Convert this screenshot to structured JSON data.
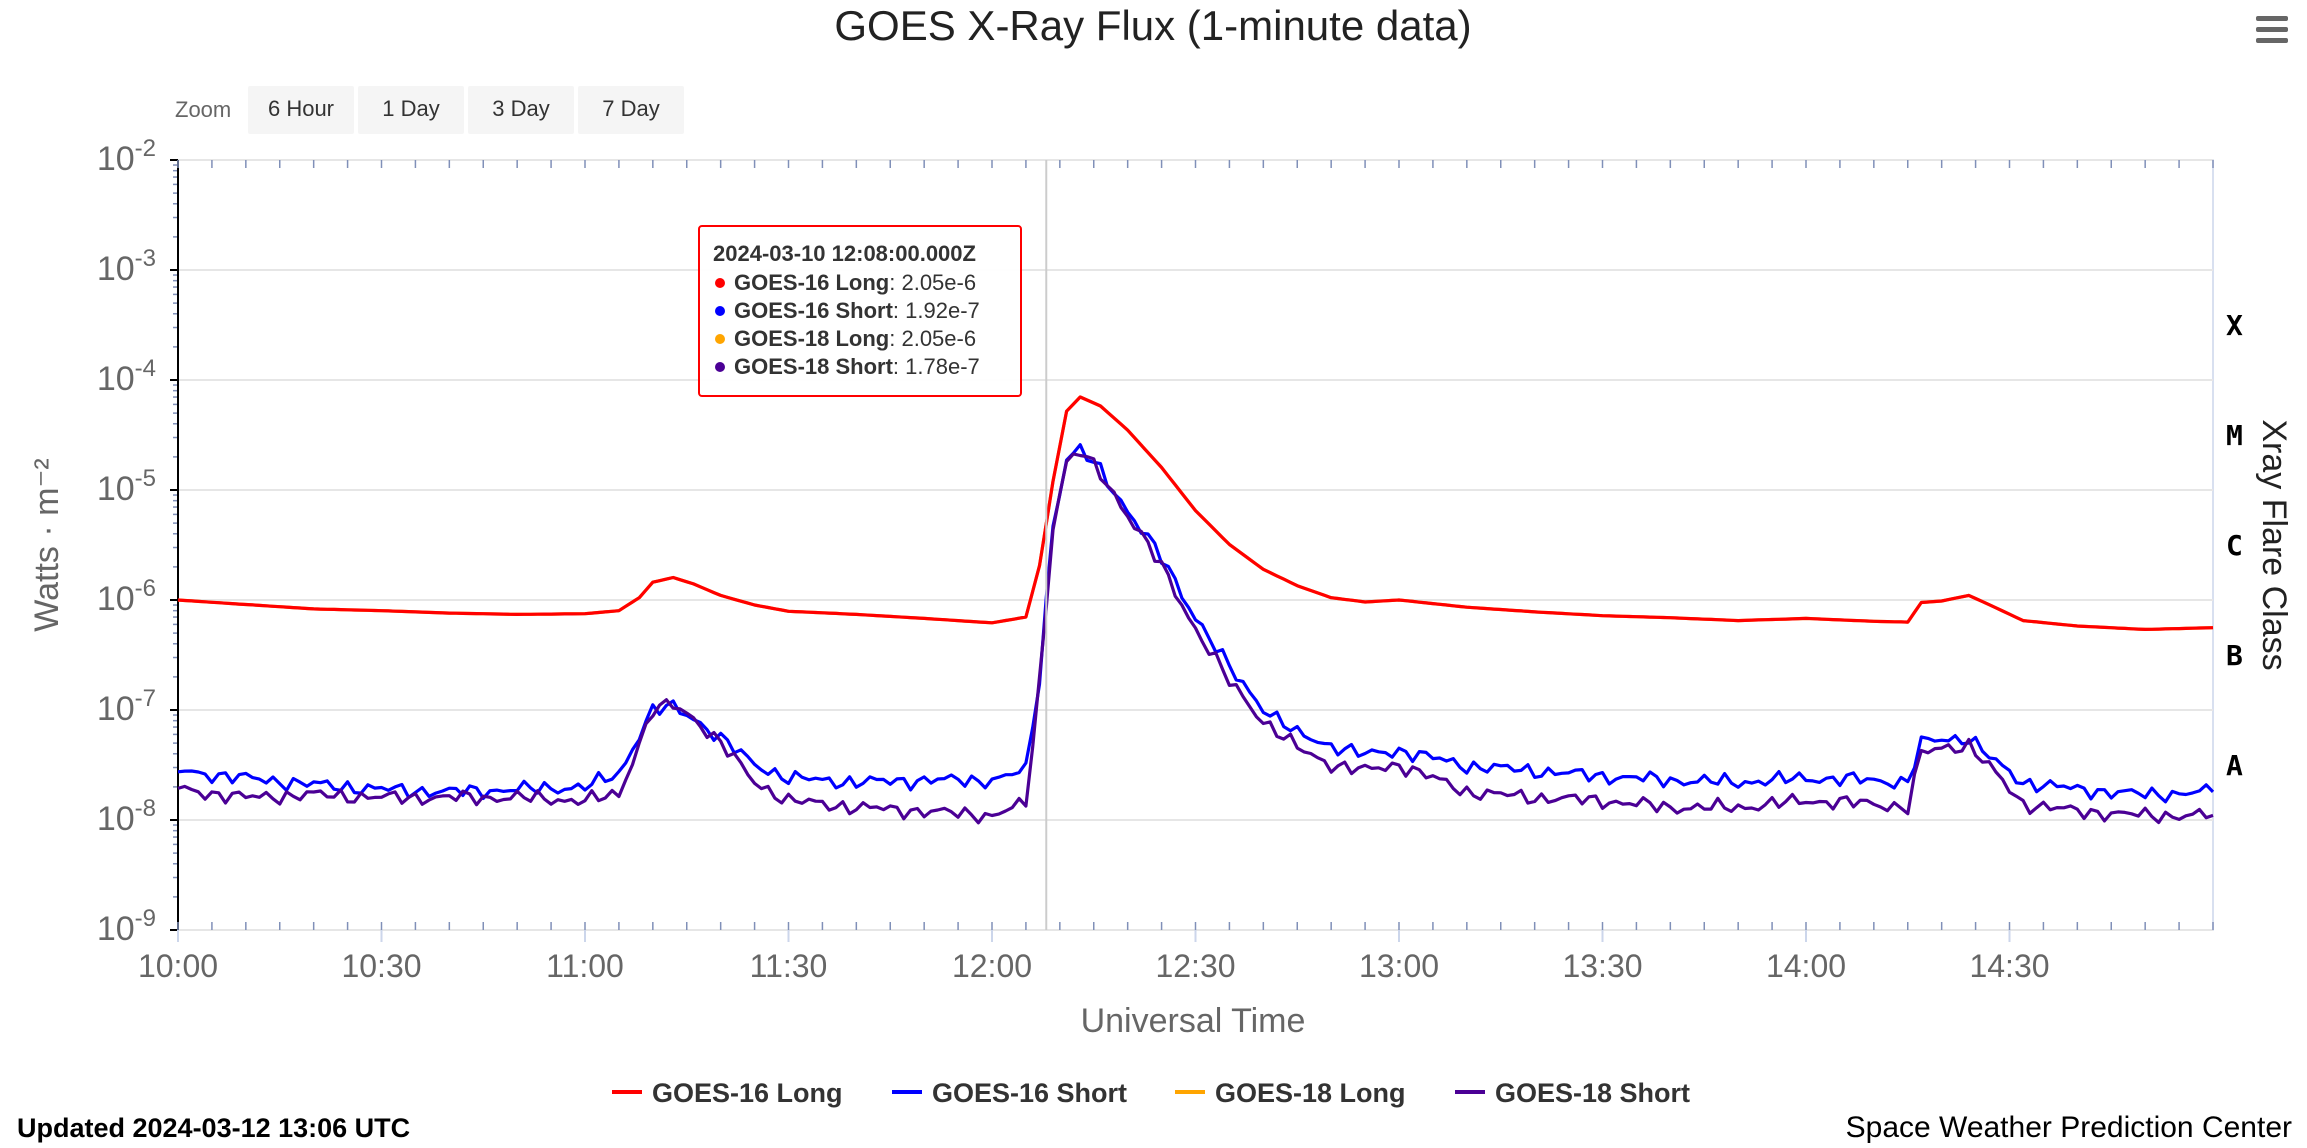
{
  "chart_data": {
    "type": "line",
    "title": "GOES X-Ray Flux (1-minute data)",
    "xlabel": "Universal Time",
    "ylabel": "Watts · m⁻²",
    "y_scale": "log",
    "ylim": [
      1e-09,
      0.01
    ],
    "xlim": [
      "10:00",
      "15:00"
    ],
    "y_ticks": [
      {
        "base": "10",
        "exp": "-9"
      },
      {
        "base": "10",
        "exp": "-8"
      },
      {
        "base": "10",
        "exp": "-7"
      },
      {
        "base": "10",
        "exp": "-6"
      },
      {
        "base": "10",
        "exp": "-5"
      },
      {
        "base": "10",
        "exp": "-4"
      },
      {
        "base": "10",
        "exp": "-3"
      },
      {
        "base": "10",
        "exp": "-2"
      }
    ],
    "x_ticks": [
      "10:00",
      "10:30",
      "11:00",
      "11:30",
      "12:00",
      "12:30",
      "13:00",
      "13:30",
      "14:00",
      "14:30"
    ],
    "grid": true,
    "legend_position": "bottom",
    "right_axis": {
      "title": "Xray Flare Class",
      "labels": [
        "X",
        "M",
        "C",
        "B",
        "A"
      ]
    },
    "x": [
      "10:00",
      "10:10",
      "10:20",
      "10:30",
      "10:40",
      "10:50",
      "11:00",
      "11:05",
      "11:08",
      "11:10",
      "11:13",
      "11:16",
      "11:20",
      "11:25",
      "11:30",
      "11:40",
      "11:50",
      "12:00",
      "12:05",
      "12:07",
      "12:09",
      "12:11",
      "12:13",
      "12:16",
      "12:20",
      "12:25",
      "12:30",
      "12:35",
      "12:40",
      "12:45",
      "12:50",
      "12:55",
      "13:00",
      "13:10",
      "13:20",
      "13:30",
      "13:40",
      "13:50",
      "14:00",
      "14:10",
      "14:15",
      "14:17",
      "14:20",
      "14:24",
      "14:28",
      "14:32",
      "14:40",
      "14:50",
      "15:00"
    ],
    "series": [
      {
        "name": "GOES-16 Long",
        "color": "#ff0000",
        "values": [
          1e-06,
          9.1e-07,
          8.3e-07,
          8e-07,
          7.6e-07,
          7.4e-07,
          7.5e-07,
          8e-07,
          1.05e-06,
          1.45e-06,
          1.6e-06,
          1.4e-06,
          1.1e-06,
          9e-07,
          7.9e-07,
          7.4e-07,
          6.8e-07,
          6.2e-07,
          7e-07,
          2.05e-06,
          1.2e-05,
          5.2e-05,
          7e-05,
          5.8e-05,
          3.5e-05,
          1.6e-05,
          6.5e-06,
          3.2e-06,
          1.9e-06,
          1.35e-06,
          1.05e-06,
          9.6e-07,
          1e-06,
          8.6e-07,
          7.8e-07,
          7.2e-07,
          6.9e-07,
          6.5e-07,
          6.8e-07,
          6.4e-07,
          6.3e-07,
          9.5e-07,
          9.8e-07,
          1.1e-06,
          8.5e-07,
          6.5e-07,
          5.8e-07,
          5.4e-07,
          5.6e-07
        ]
      },
      {
        "name": "GOES-16 Short",
        "color": "#0000ff",
        "values": [
          2.8e-08,
          2.4e-08,
          2.1e-08,
          1.9e-08,
          1.8e-08,
          1.9e-08,
          2e-08,
          2.6e-08,
          6e-08,
          1e-07,
          1.05e-07,
          8.5e-08,
          5.5e-08,
          3.2e-08,
          2.4e-08,
          2.2e-08,
          2.3e-08,
          2.3e-08,
          2.8e-08,
          1.92e-07,
          5e-06,
          1.9e-05,
          2.3e-05,
          1.5e-05,
          6.5e-06,
          2.4e-06,
          7e-07,
          2.4e-07,
          1.05e-07,
          6e-08,
          4.8e-08,
          3.9e-08,
          4.3e-08,
          3.1e-08,
          2.8e-08,
          2.5e-08,
          2.3e-08,
          2.2e-08,
          2.4e-08,
          2.3e-08,
          2.2e-08,
          5e-08,
          5.4e-08,
          5.6e-08,
          3.3e-08,
          2.2e-08,
          1.9e-08,
          1.7e-08,
          1.8e-08
        ]
      },
      {
        "name": "GOES-18 Long",
        "color": "#ffa500",
        "values": [
          1e-06,
          9.1e-07,
          8.3e-07,
          8e-07,
          7.6e-07,
          7.4e-07,
          7.5e-07,
          8e-07,
          1.05e-06,
          1.45e-06,
          1.6e-06,
          1.4e-06,
          1.1e-06,
          9e-07,
          7.9e-07,
          7.4e-07,
          6.8e-07,
          6.2e-07,
          7e-07,
          2.05e-06,
          1.2e-05,
          5.2e-05,
          7e-05,
          5.8e-05,
          3.5e-05,
          1.6e-05,
          6.5e-06,
          3.2e-06,
          1.9e-06,
          1.35e-06,
          1.05e-06,
          9.6e-07,
          1e-06,
          8.6e-07,
          7.8e-07,
          7.2e-07,
          6.9e-07,
          6.5e-07,
          6.8e-07,
          6.4e-07,
          6.3e-07,
          9.5e-07,
          9.8e-07,
          1.1e-06,
          8.5e-07,
          6.5e-07,
          5.8e-07,
          5.4e-07,
          5.6e-07
        ]
      },
      {
        "name": "GOES-18 Short",
        "color": "#4b0095",
        "values": [
          1.9e-08,
          1.6e-08,
          1.7e-08,
          1.6e-08,
          1.6e-08,
          1.6e-08,
          1.5e-08,
          1.7e-08,
          5e-08,
          1e-07,
          1.1e-07,
          8.5e-08,
          5e-08,
          2.2e-08,
          1.5e-08,
          1.3e-08,
          1.2e-08,
          1.1e-08,
          1.4e-08,
          1.78e-07,
          4.8e-06,
          1.8e-05,
          2.2e-05,
          1.4e-05,
          6e-06,
          2e-06,
          5.5e-07,
          1.8e-07,
          8e-08,
          4.5e-08,
          3.2e-08,
          2.8e-08,
          3.2e-08,
          1.8e-08,
          1.6e-08,
          1.5e-08,
          1.3e-08,
          1.3e-08,
          1.5e-08,
          1.4e-08,
          1.3e-08,
          4e-08,
          4.5e-08,
          4.8e-08,
          2.6e-08,
          1.4e-08,
          1.2e-08,
          1.1e-08,
          1.1e-08
        ]
      }
    ],
    "tooltip": {
      "time": "2024-03-10 12:08:00.000Z",
      "at_x": "12:08",
      "rows": [
        {
          "name": "GOES-16 Long",
          "value": "2.05e-6",
          "color": "#ff0000"
        },
        {
          "name": "GOES-16 Short",
          "value": "1.92e-7",
          "color": "#0000ff"
        },
        {
          "name": "GOES-18 Long",
          "value": "2.05e-6",
          "color": "#ffa500"
        },
        {
          "name": "GOES-18 Short",
          "value": "1.78e-7",
          "color": "#4b0095"
        }
      ]
    }
  },
  "zoom": {
    "label": "Zoom",
    "buttons": [
      "6 Hour",
      "1 Day",
      "3 Day",
      "7 Day"
    ]
  },
  "footer": {
    "updated": "Updated 2024-03-12 13:06 UTC",
    "credit": "Space Weather Prediction Center"
  },
  "menu": {
    "icon": "hamburger-menu-icon"
  }
}
